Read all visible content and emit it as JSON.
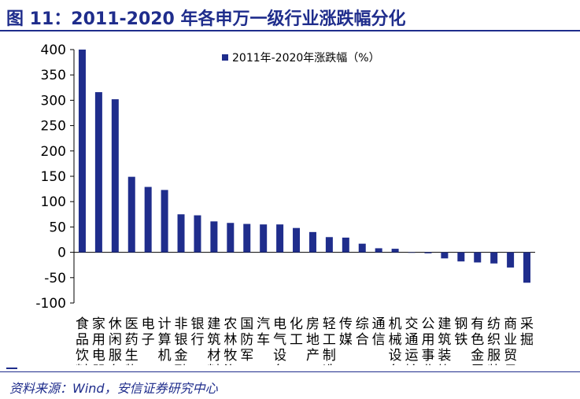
{
  "header": {
    "title": "图 11：2011-2020 年各申万一级行业涨跌幅分化"
  },
  "footer": {
    "source": "资料来源：Wind，安信证券研究中心"
  },
  "colors": {
    "bar": "#1f2d8c",
    "accent": "#1f2d8c"
  },
  "chart_data": {
    "type": "bar",
    "title": "",
    "xlabel": "",
    "ylabel": "",
    "ylim": [
      -100,
      400
    ],
    "yticks": [
      -100,
      -50,
      0,
      50,
      100,
      150,
      200,
      250,
      300,
      350,
      400
    ],
    "legend_position": "top-right",
    "grid": false,
    "categories": [
      "食品饮料",
      "家用电器",
      "休闲服务",
      "医药生物",
      "电子",
      "计算机",
      "非银金融",
      "银行",
      "建筑材料",
      "农林牧渔",
      "国防军工",
      "汽车",
      "电气设备",
      "化工",
      "房地产",
      "轻工制造",
      "传媒",
      "综合",
      "通信",
      "机械设备",
      "交通运输",
      "公用事业",
      "建筑装饰",
      "钢铁",
      "有色金属",
      "纺织服装",
      "商业贸易",
      "采掘"
    ],
    "series": [
      {
        "name": "2011年-2020年涨跌幅（%）",
        "values": [
          400,
          316,
          302,
          149,
          129,
          123,
          75,
          73,
          61,
          58,
          56,
          55,
          55,
          48,
          40,
          30,
          29,
          17,
          8,
          7,
          0,
          -2,
          -12,
          -18,
          -20,
          -22,
          -30,
          -60
        ]
      }
    ]
  }
}
